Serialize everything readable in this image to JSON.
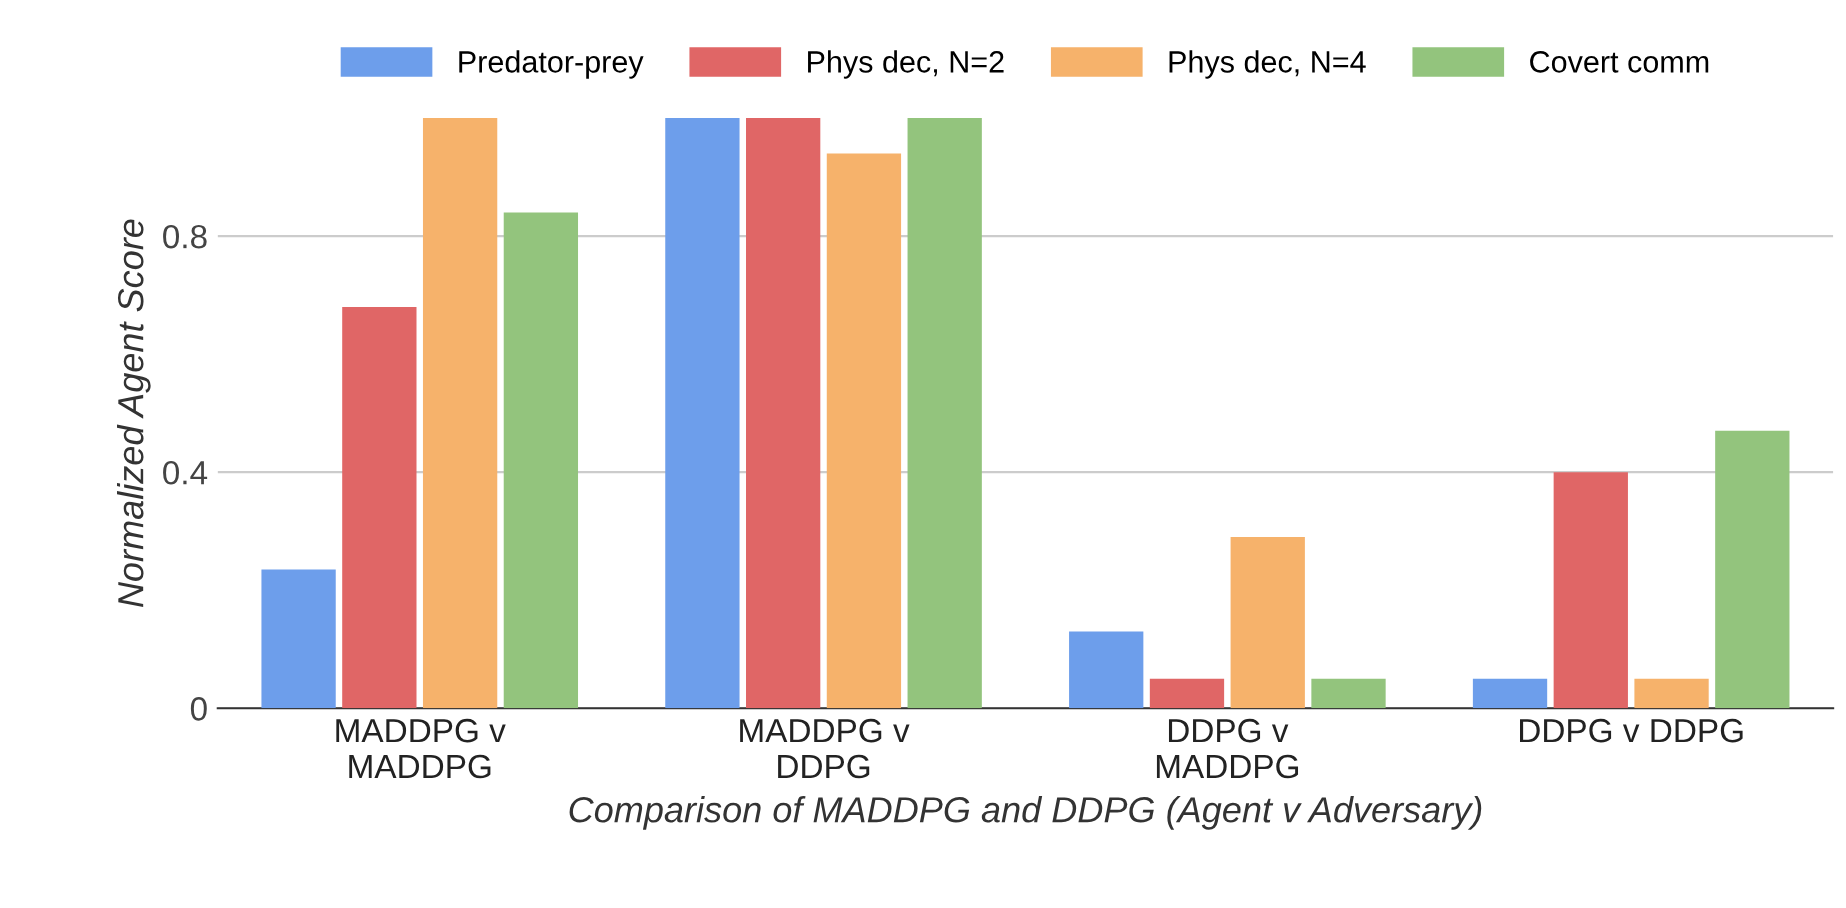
{
  "chart_data": {
    "type": "bar",
    "categories": [
      "MADDPG v\nMADDPG",
      "MADDPG v\nDDPG",
      "DDPG v\nMADDPG",
      "DDPG v DDPG"
    ],
    "xlabel": "Comparison of MADDPG and DDPG (Agent v Adversary)",
    "ylabel": "Normalized Agent Score",
    "series": [
      {
        "name": "Predator-prey",
        "color": "#6d9eeb",
        "values": [
          0.235,
          1.0,
          0.13,
          0.05
        ]
      },
      {
        "name": "Phys dec, N=2",
        "color": "#e06666",
        "values": [
          0.68,
          1.0,
          0.05,
          0.4
        ]
      },
      {
        "name": "Phys dec, N=4",
        "color": "#f6b26b",
        "values": [
          1.0,
          0.94,
          0.29,
          0.05
        ]
      },
      {
        "name": "Covert comm",
        "color": "#93c47d",
        "values": [
          0.84,
          1.0,
          0.05,
          0.47
        ]
      }
    ],
    "ylim": [
      0,
      1.0
    ],
    "yticks": [
      0,
      0.4,
      0.8
    ],
    "grid": "y",
    "legend": "top"
  }
}
